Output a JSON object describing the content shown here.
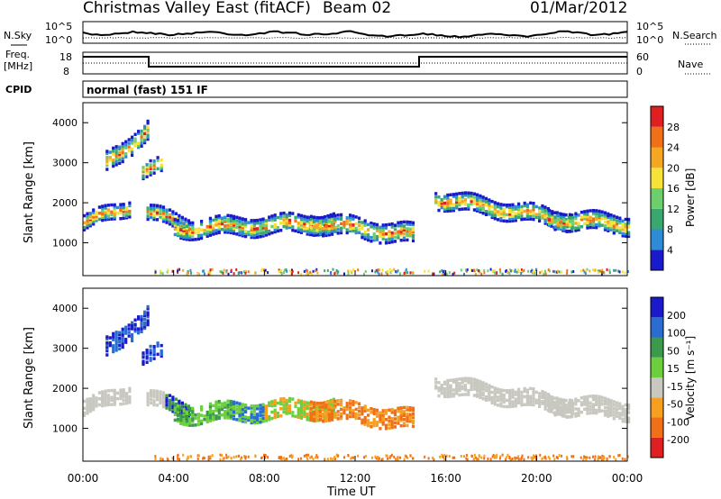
{
  "header": {
    "station": "Christmas Valley East (fitACF)",
    "beam": "Beam 02",
    "date": "01/Mar/2012"
  },
  "colors": {
    "power_scale": [
      "#1a1acc",
      "#2e8bd6",
      "#3aa86e",
      "#6ccf6c",
      "#f7e23a",
      "#f5a623",
      "#f07018",
      "#e02020"
    ],
    "velocity_scale": [
      "#1a1acc",
      "#2a6ccf",
      "#3c9a4c",
      "#6ccf3c",
      "#c8c8c0",
      "#f7a020",
      "#f07018",
      "#e02020"
    ],
    "ground_scatter": "#c8c8c0"
  },
  "sky_noise_panel": {
    "left_label": "N.Sky",
    "right_label": "N.Search",
    "left_ticks": [
      "10^5",
      "10^0"
    ],
    "right_ticks": [
      "10^5",
      "10^0"
    ]
  },
  "freq_panel": {
    "left_label_1": "Freq.",
    "left_label_2": "[MHz]",
    "right_label": "Nave",
    "left_ticks": [
      "18",
      "8"
    ],
    "right_ticks": [
      "60",
      "0"
    ]
  },
  "cpid": {
    "label": "CPID",
    "mode": "normal (fast) 151 IF"
  },
  "chart_data": [
    {
      "type": "heatmap",
      "name": "power",
      "ylabel": "Slant Range [km]",
      "xlabel": "Time UT",
      "x_ticks": [
        "00:00",
        "04:00",
        "08:00",
        "12:00",
        "16:00",
        "20:00",
        "00:00"
      ],
      "y_ticks": [
        "1000",
        "2000",
        "3000",
        "4000"
      ],
      "colorbar_label": "Power [dB]",
      "colorbar_ticks": [
        "28",
        "24",
        "20",
        "16",
        "12",
        "8",
        "4"
      ],
      "range_km": [
        180,
        4500
      ],
      "time_hours": [
        0,
        24
      ],
      "echo_bands": [
        {
          "t": [
            0.0,
            2.0
          ],
          "r_center": [
            1500,
            1900
          ],
          "r_width": 350
        },
        {
          "t": [
            1.0,
            2.8
          ],
          "r_center": [
            3000,
            3800
          ],
          "r_width": 450
        },
        {
          "t": [
            2.6,
            3.4
          ],
          "r_center": [
            2800,
            2900
          ],
          "r_width": 350
        },
        {
          "t": [
            2.8,
            4.6
          ],
          "r_center": [
            1750,
            1450
          ],
          "r_width": 350
        },
        {
          "t": [
            4.0,
            11.0
          ],
          "r_center": [
            1350,
            1500
          ],
          "r_width": 420
        },
        {
          "t": [
            10.0,
            14.5
          ],
          "r_center": [
            1500,
            1200
          ],
          "r_width": 450
        },
        {
          "t": [
            15.5,
            21.5
          ],
          "r_center": [
            2100,
            1550
          ],
          "r_width": 400
        },
        {
          "t": [
            20.5,
            24.0
          ],
          "r_center": [
            1600,
            1450
          ],
          "r_width": 420
        }
      ]
    },
    {
      "type": "heatmap",
      "name": "velocity",
      "ylabel": "Slant Range [km]",
      "xlabel": "Time UT",
      "x_ticks": [
        "00:00",
        "04:00",
        "08:00",
        "12:00",
        "16:00",
        "20:00",
        "00:00"
      ],
      "y_ticks": [
        "1000",
        "2000",
        "3000",
        "4000"
      ],
      "colorbar_label": "Velocity [m s⁻¹]",
      "colorbar_ticks": [
        "200",
        "100",
        "50",
        "15",
        "-15",
        "-50",
        "-100",
        "-200"
      ],
      "range_km": [
        180,
        4500
      ],
      "time_hours": [
        0,
        24
      ]
    }
  ]
}
